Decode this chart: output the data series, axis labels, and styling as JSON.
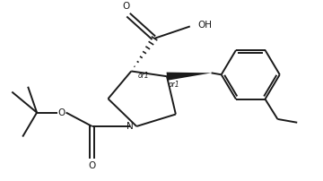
{
  "bg_color": "#ffffff",
  "line_color": "#1a1a1a",
  "line_width": 1.4,
  "font_size": 7.5,
  "label_or1_fontsize": 5.5,
  "fig_width": 3.6,
  "fig_height": 2.02,
  "dpi": 100,
  "xlim": [
    0,
    9.0
  ],
  "ylim": [
    0,
    5.0
  ]
}
